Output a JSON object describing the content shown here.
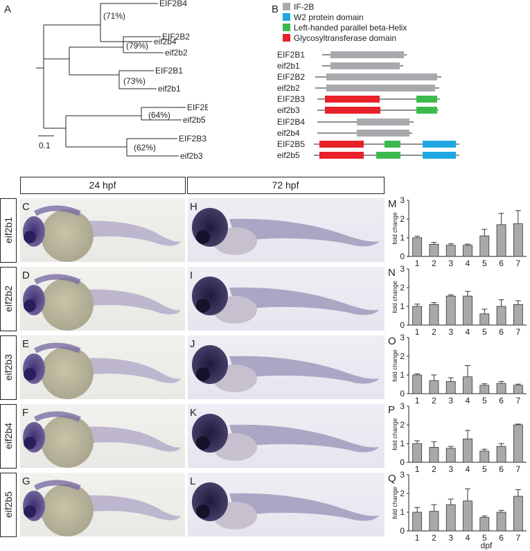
{
  "panel_a": {
    "letter": "A",
    "leaves": [
      "EIF2B4",
      "eif2b4",
      "EIF2B2",
      "eif2b2",
      "EIF2B1",
      "eif2b1",
      "EIF2B5",
      "eif2b5",
      "EIF2B3",
      "eif2b3"
    ],
    "bootstrap": [
      "(71%)",
      "(79%)",
      "(73%)",
      "(64%)",
      "(62%)"
    ],
    "scale_label": "0.1"
  },
  "panel_b": {
    "letter": "B",
    "legend": [
      {
        "label": "IF-2B",
        "color": "#a7a9ac"
      },
      {
        "label": "W2 protein domain",
        "color": "#1ea7e1"
      },
      {
        "label": "Left-handed parallel beta-Helix",
        "color": "#3dba4e"
      },
      {
        "label": "Glycosyltransferase domain",
        "color": "#e8202a"
      }
    ],
    "proteins": [
      "EIF2B1",
      "eif2b1",
      "EIF2B2",
      "eif2b2",
      "EIF2B3",
      "eif2b3",
      "EIF2B4",
      "eif2b4",
      "EIF2B5",
      "eif2b5"
    ]
  },
  "stages": [
    "24 hpf",
    "72 hpf"
  ],
  "rows": [
    {
      "gene": "eif2b1",
      "letters": [
        "C",
        "H",
        "M"
      ]
    },
    {
      "gene": "eif2b2",
      "letters": [
        "D",
        "I",
        "N"
      ]
    },
    {
      "gene": "eif2b3",
      "letters": [
        "E",
        "J",
        "O"
      ]
    },
    {
      "gene": "eif2b4",
      "letters": [
        "F",
        "K",
        "P"
      ]
    },
    {
      "gene": "eif2b5",
      "letters": [
        "G",
        "L",
        "Q"
      ]
    }
  ],
  "chart_data": {
    "type": "bar",
    "categories": [
      "1",
      "2",
      "3",
      "4",
      "5",
      "6",
      "7"
    ],
    "xlabel": "dpf",
    "ylabel": "fold change",
    "ylim": [
      0,
      3
    ],
    "yticks": [
      "0",
      "1",
      "2",
      "3"
    ],
    "series": [
      {
        "values": [
          1.0,
          0.65,
          0.6,
          0.6,
          1.1,
          1.7,
          1.75
        ],
        "errors": [
          0.08,
          0.1,
          0.08,
          0.06,
          0.35,
          0.6,
          0.7
        ]
      },
      {
        "values": [
          1.0,
          1.1,
          1.55,
          1.55,
          0.6,
          1.0,
          1.1
        ],
        "errors": [
          0.12,
          0.1,
          0.06,
          0.25,
          0.25,
          0.35,
          0.2
        ]
      },
      {
        "values": [
          1.0,
          0.7,
          0.65,
          0.9,
          0.45,
          0.55,
          0.45
        ],
        "errors": [
          0.06,
          0.3,
          0.2,
          0.6,
          0.08,
          0.1,
          0.06
        ]
      },
      {
        "values": [
          1.0,
          0.8,
          0.75,
          1.25,
          0.6,
          0.85,
          2.0
        ],
        "errors": [
          0.15,
          0.3,
          0.1,
          0.45,
          0.1,
          0.15,
          0.04
        ]
      },
      {
        "values": [
          1.0,
          1.05,
          1.4,
          1.6,
          0.72,
          1.0,
          1.85
        ],
        "errors": [
          0.25,
          0.35,
          0.3,
          0.65,
          0.08,
          0.1,
          0.35
        ]
      }
    ]
  }
}
